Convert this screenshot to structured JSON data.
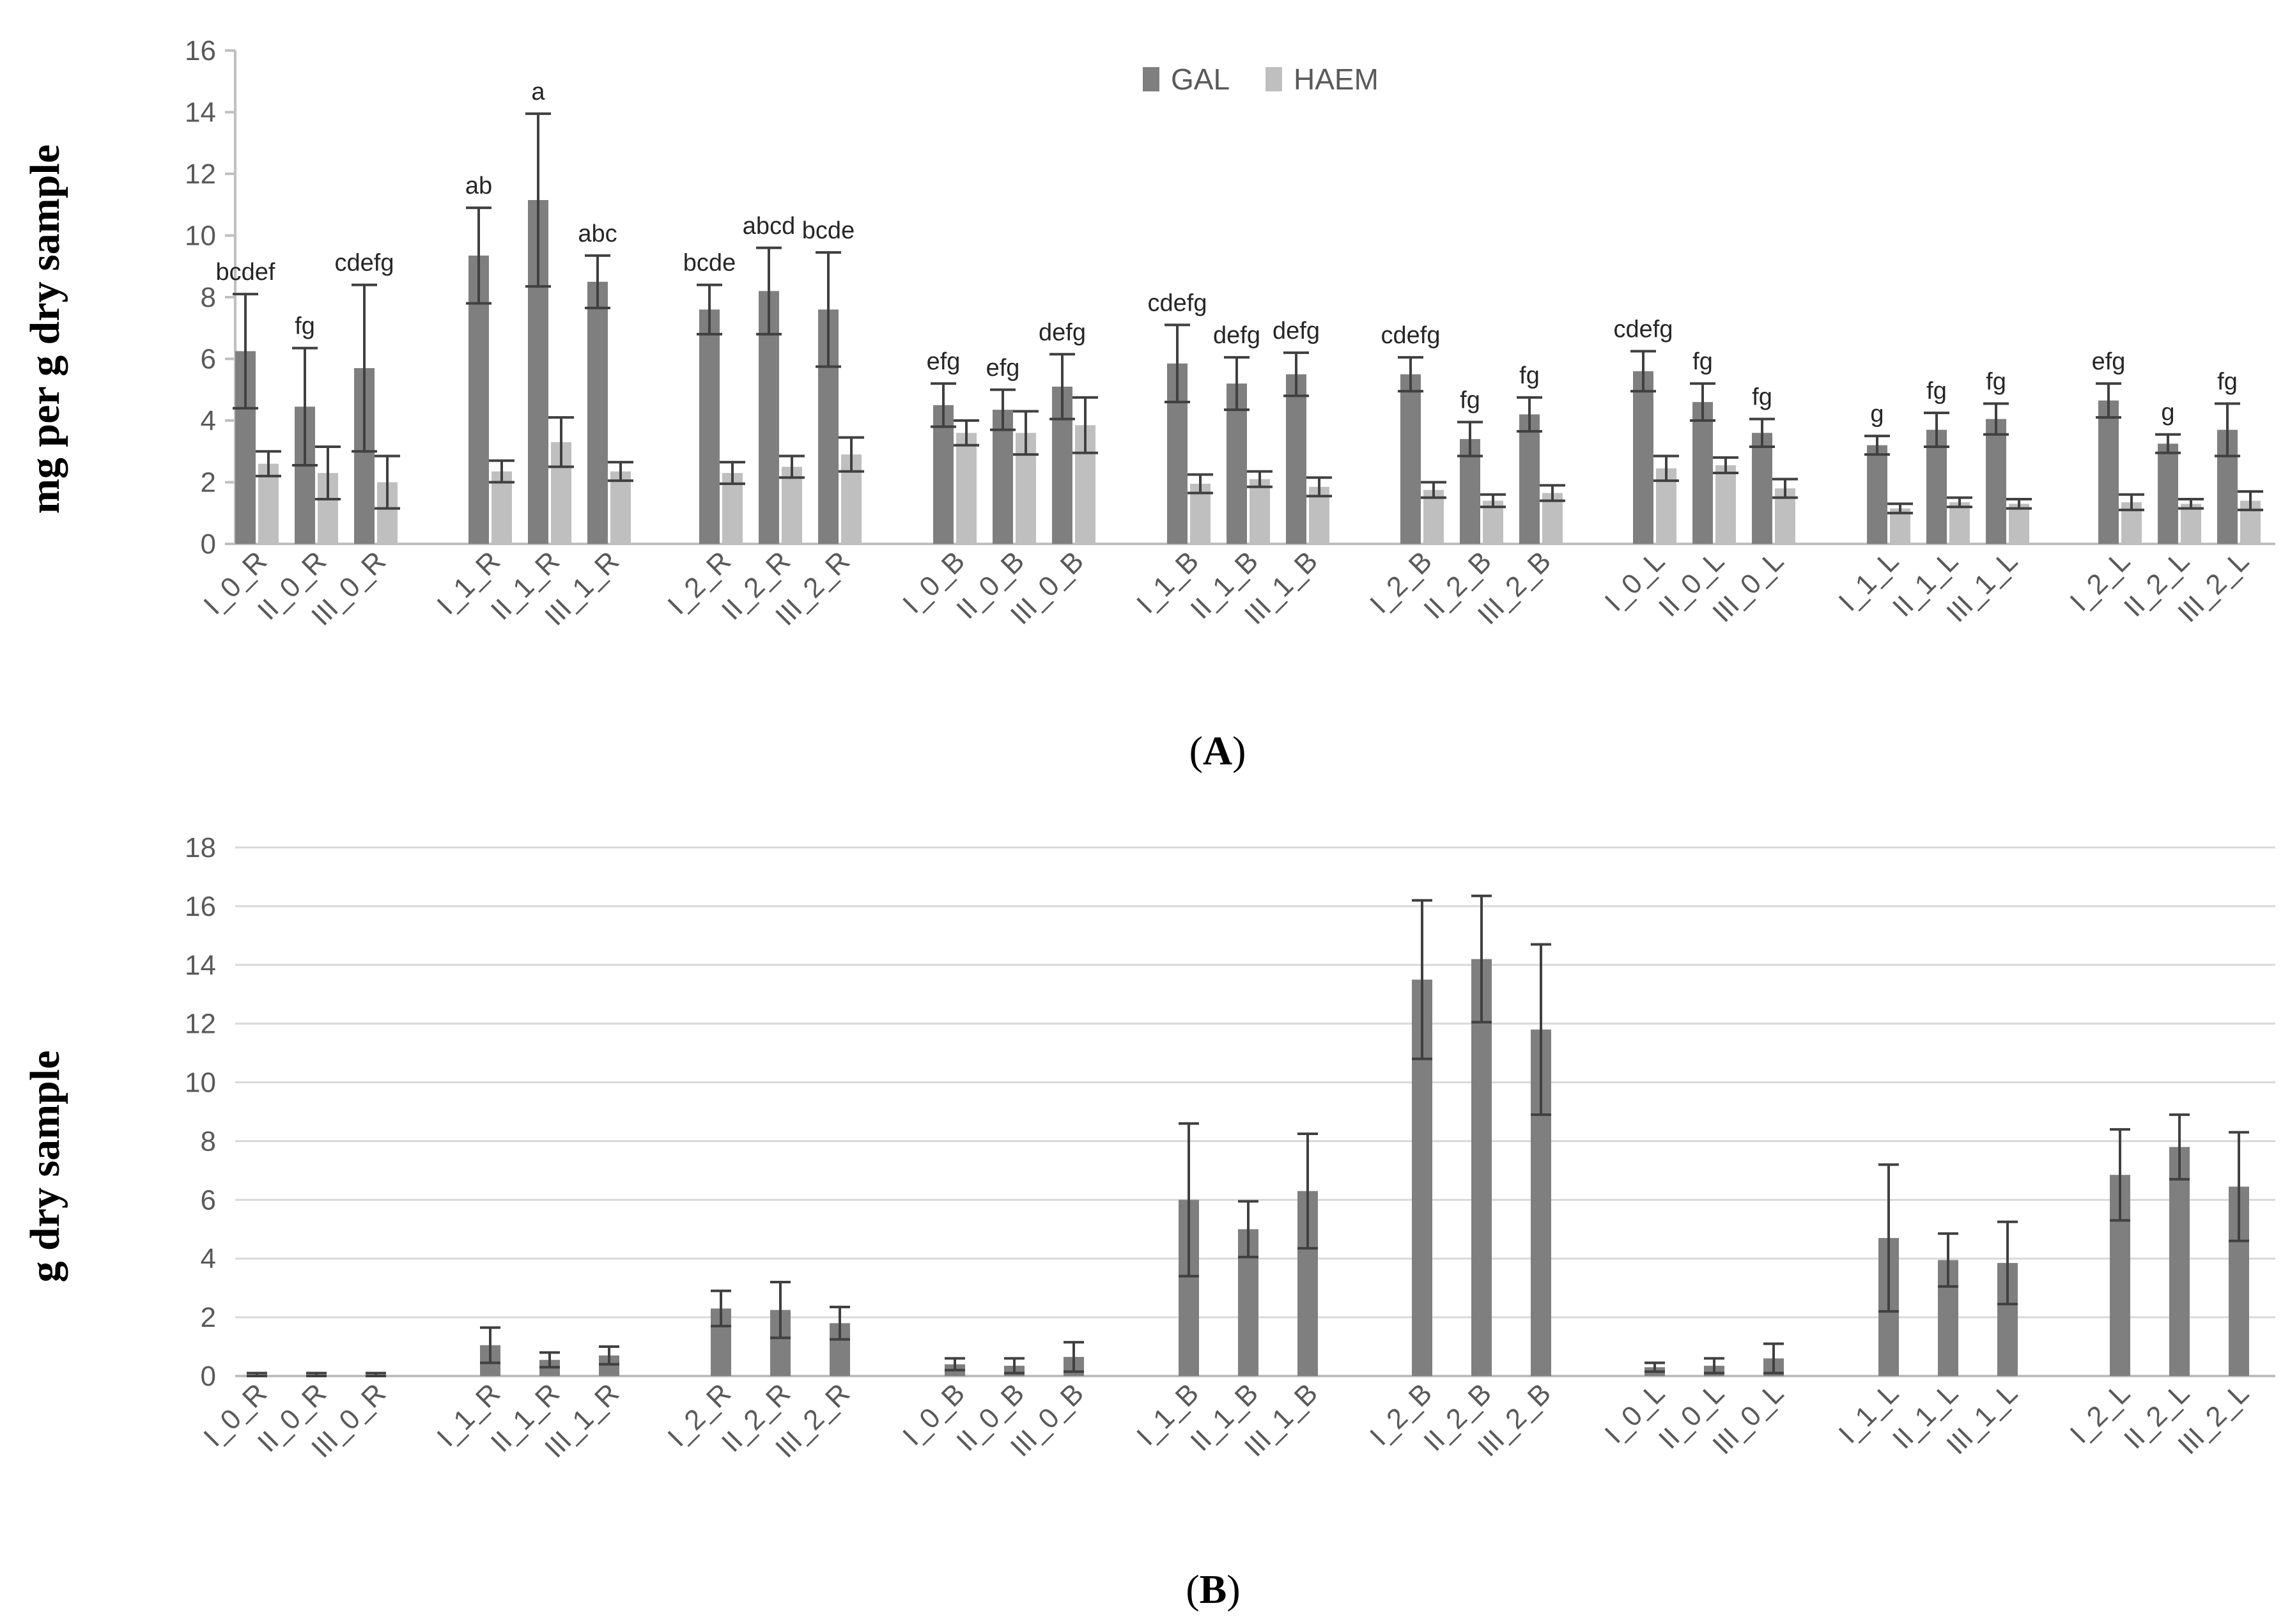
{
  "colors": {
    "gal": "#7f7f7f",
    "haem": "#bfbfbf",
    "error": "#404040",
    "axis": "#bfbfbf",
    "grid": "#d9d9d9"
  },
  "chart_data": [
    {
      "type": "bar",
      "panel_label": "A",
      "ylabel": "mg per g dry sample",
      "ylim": [
        0,
        16
      ],
      "yticks": [
        0,
        2,
        4,
        6,
        8,
        10,
        12,
        14,
        16
      ],
      "grid": false,
      "legend": "top-center",
      "categories": [
        "I_0_R",
        "II_0_R",
        "III_0_R",
        "I_1_R",
        "II_1_R",
        "III_1_R",
        "I_2_R",
        "II_2_R",
        "III_2_R",
        "I_0_B",
        "II_0_B",
        "III_0_B",
        "I_1_B",
        "II_1_B",
        "III_1_B",
        "I_2_B",
        "II_2_B",
        "III_2_B",
        "I_0_L",
        "II_0_L",
        "III_0_L",
        "I_1_L",
        "II_1_L",
        "III_1_L",
        "I_2_L",
        "II_2_L",
        "III_2_L"
      ],
      "series": [
        {
          "name": "GAL",
          "values": [
            6.25,
            4.45,
            5.7,
            9.35,
            11.15,
            8.5,
            7.6,
            8.2,
            7.6,
            4.5,
            4.35,
            5.1,
            5.85,
            5.2,
            5.5,
            5.5,
            3.4,
            4.2,
            5.6,
            4.6,
            3.6,
            3.2,
            3.7,
            4.05,
            4.65,
            3.25,
            3.7
          ],
          "errors": [
            1.85,
            1.9,
            2.7,
            1.55,
            2.8,
            0.85,
            0.8,
            1.4,
            1.85,
            0.7,
            0.65,
            1.05,
            1.25,
            0.85,
            0.7,
            0.55,
            0.55,
            0.55,
            0.65,
            0.6,
            0.45,
            0.3,
            0.55,
            0.5,
            0.55,
            0.3,
            0.85
          ]
        },
        {
          "name": "HAEM",
          "values": [
            2.6,
            2.3,
            2.0,
            2.35,
            3.3,
            2.35,
            2.3,
            2.5,
            2.9,
            3.6,
            3.6,
            3.85,
            1.95,
            2.1,
            1.85,
            1.75,
            1.4,
            1.65,
            2.45,
            2.55,
            1.8,
            1.15,
            1.35,
            1.3,
            1.35,
            1.3,
            1.4
          ],
          "errors": [
            0.4,
            0.85,
            0.85,
            0.35,
            0.8,
            0.3,
            0.35,
            0.35,
            0.55,
            0.4,
            0.7,
            0.9,
            0.3,
            0.25,
            0.3,
            0.25,
            0.2,
            0.25,
            0.4,
            0.25,
            0.3,
            0.15,
            0.15,
            0.15,
            0.25,
            0.15,
            0.3
          ]
        }
      ],
      "annotations": [
        "bcdef",
        "fg",
        "cdefg",
        "ab",
        "a",
        "abc",
        "bcde",
        "abcd",
        "bcde",
        "efg",
        "efg",
        "defg",
        "cdefg",
        "defg",
        "defg",
        "cdefg",
        "fg",
        "fg",
        "cdefg",
        "fg",
        "fg",
        "g",
        "fg",
        "fg",
        "efg",
        "g",
        "fg"
      ]
    },
    {
      "type": "bar",
      "panel_label": "B",
      "ylabel": "g dry sample",
      "ylim": [
        0,
        18
      ],
      "yticks": [
        0,
        2,
        4,
        6,
        8,
        10,
        12,
        14,
        16,
        18
      ],
      "grid": true,
      "categories": [
        "I_0_R",
        "II_0_R",
        "III_0_R",
        "I_1_R",
        "II_1_R",
        "III_1_R",
        "I_2_R",
        "II_2_R",
        "III_2_R",
        "I_0_B",
        "II_0_B",
        "III_0_B",
        "I_1_B",
        "II_1_B",
        "III_1_B",
        "I_2_B",
        "II_2_B",
        "III_2_B",
        "I_0_L",
        "II_0_L",
        "III_0_L",
        "I_1_L",
        "II_1_L",
        "III_1_L",
        "I_2_L",
        "II_2_L",
        "III_2_L"
      ],
      "series": [
        {
          "values": [
            0.05,
            0.05,
            0.05,
            1.05,
            0.55,
            0.7,
            2.3,
            2.25,
            1.8,
            0.4,
            0.35,
            0.65,
            6.0,
            5.0,
            6.3,
            13.5,
            14.2,
            11.8,
            0.3,
            0.35,
            0.6,
            4.7,
            3.95,
            3.85,
            6.85,
            7.8,
            6.45
          ],
          "errors": [
            0.05,
            0.05,
            0.05,
            0.6,
            0.25,
            0.3,
            0.6,
            0.95,
            0.55,
            0.2,
            0.25,
            0.5,
            2.6,
            0.95,
            1.95,
            2.7,
            2.15,
            2.9,
            0.15,
            0.25,
            0.5,
            2.5,
            0.9,
            1.4,
            1.55,
            1.1,
            1.85
          ]
        }
      ]
    }
  ]
}
